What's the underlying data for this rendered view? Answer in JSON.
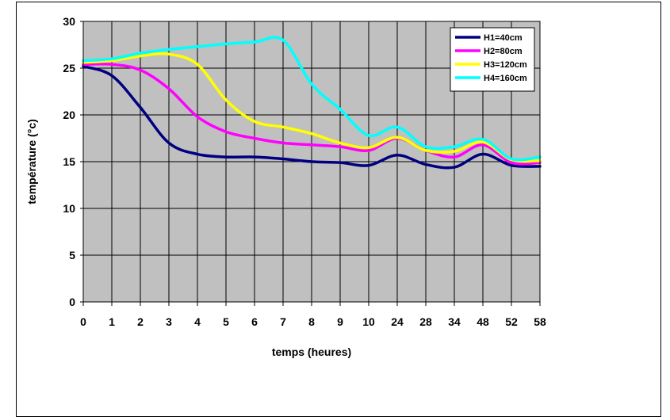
{
  "chart_data": {
    "type": "line",
    "title": "",
    "xlabel": "temps (heures)",
    "ylabel": "température (°c)",
    "categories": [
      "0",
      "1",
      "2",
      "3",
      "4",
      "5",
      "6",
      "7",
      "8",
      "9",
      "10",
      "24",
      "28",
      "34",
      "48",
      "52",
      "58"
    ],
    "ylim": [
      0,
      30
    ],
    "yticks": [
      0,
      5,
      10,
      15,
      20,
      25,
      30
    ],
    "grid": true,
    "legend_position": "top-right",
    "plot_background": "#c0c0c0",
    "series": [
      {
        "name": "H1=40cm",
        "color": "#000080",
        "values": [
          25.2,
          24.2,
          20.8,
          17.0,
          15.8,
          15.5,
          15.5,
          15.3,
          15.0,
          14.9,
          14.6,
          15.7,
          14.7,
          14.4,
          15.8,
          14.6,
          14.5
        ]
      },
      {
        "name": "H2=80cm",
        "color": "#ff00ff",
        "values": [
          25.4,
          25.4,
          24.8,
          22.8,
          19.8,
          18.2,
          17.5,
          17.0,
          16.8,
          16.6,
          16.2,
          17.5,
          16.2,
          15.5,
          16.8,
          14.9,
          14.9
        ]
      },
      {
        "name": "H3=120cm",
        "color": "#ffff00",
        "values": [
          25.6,
          25.8,
          26.3,
          26.5,
          25.4,
          21.6,
          19.3,
          18.7,
          18.0,
          17.0,
          16.5,
          17.6,
          16.2,
          16.1,
          17.1,
          15.2,
          15.1
        ]
      },
      {
        "name": "H4=160cm",
        "color": "#00ffff",
        "values": [
          25.8,
          26.0,
          26.6,
          27.0,
          27.3,
          27.6,
          27.8,
          28.0,
          23.3,
          20.6,
          17.8,
          18.7,
          16.6,
          16.6,
          17.4,
          15.3,
          15.5
        ]
      }
    ]
  }
}
